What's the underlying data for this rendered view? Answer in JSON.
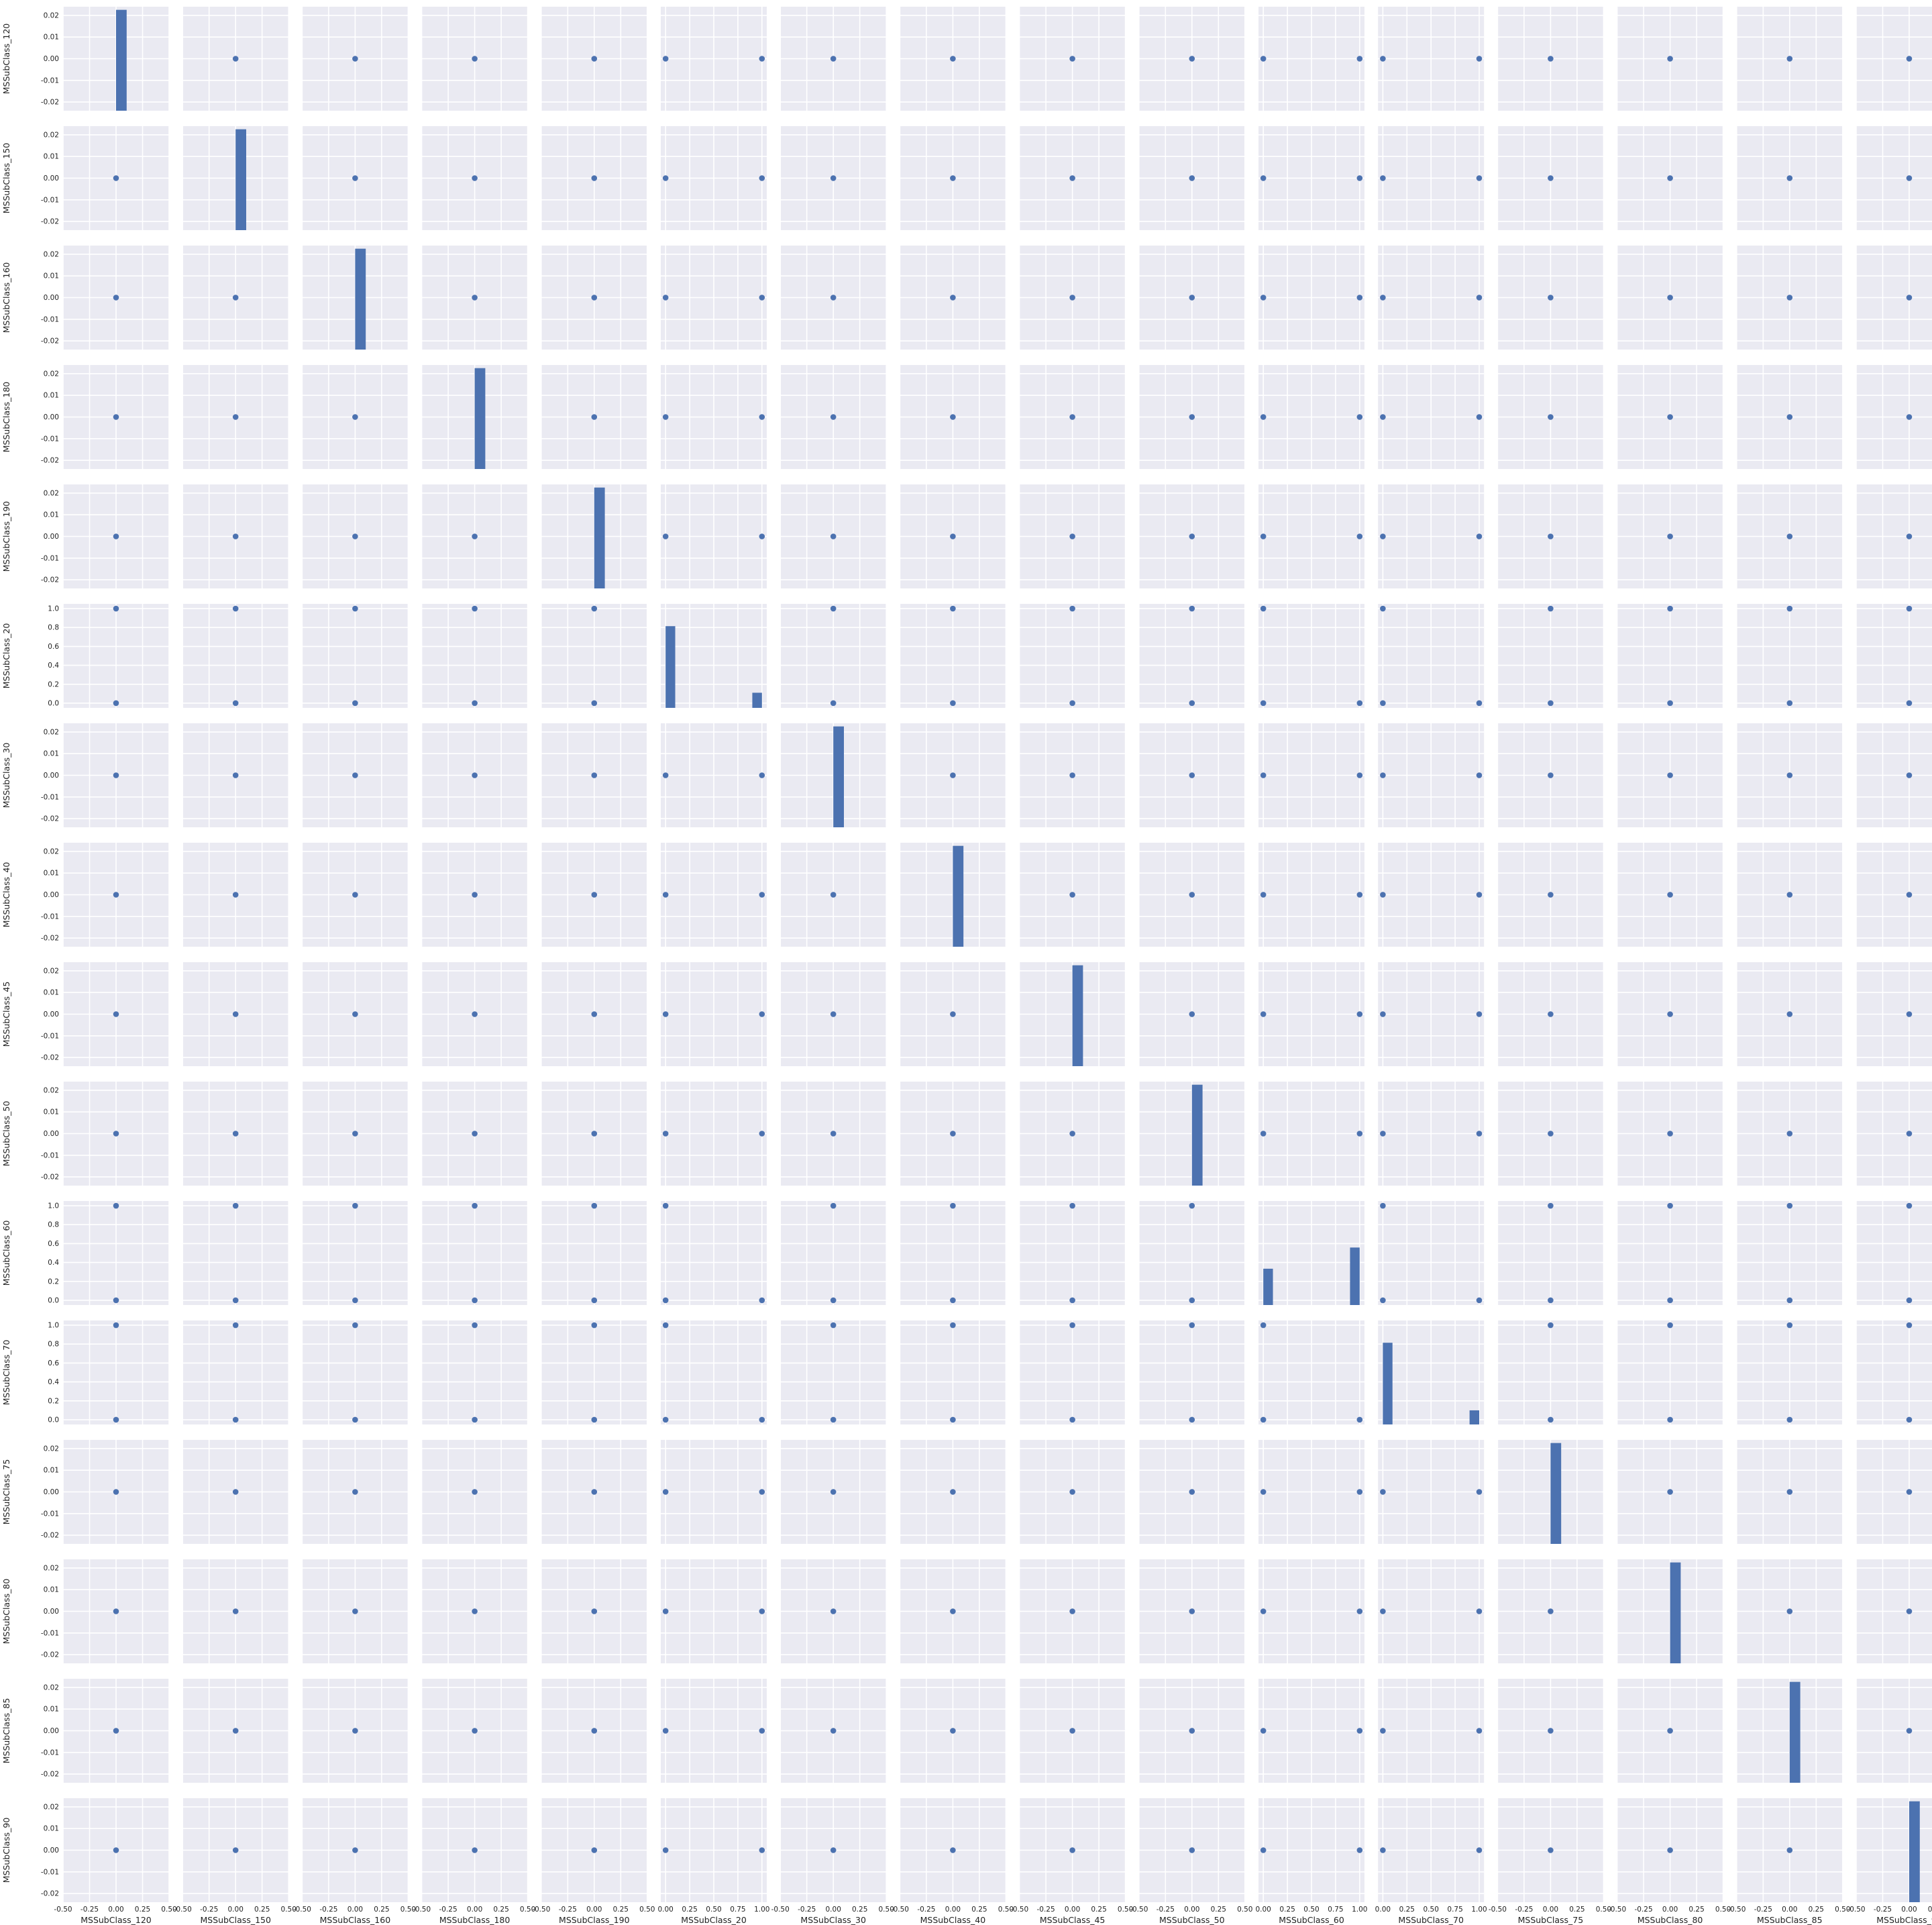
{
  "colors": {
    "panel_background": "#EAEAF2",
    "grid": "#FFFFFF",
    "marker": "#4C72B0",
    "bar": "#4C72B0",
    "text": "#222222"
  },
  "chart_data": {
    "type": "pairplot",
    "variables": [
      "MSSubClass_120",
      "MSSubClass_150",
      "MSSubClass_160",
      "MSSubClass_180",
      "MSSubClass_190",
      "MSSubClass_20",
      "MSSubClass_30",
      "MSSubClass_40",
      "MSSubClass_45",
      "MSSubClass_50",
      "MSSubClass_60",
      "MSSubClass_70",
      "MSSubClass_75",
      "MSSubClass_80",
      "MSSubClass_85",
      "MSSubClass_90"
    ],
    "binary_variables": [
      "MSSubClass_20",
      "MSSubClass_60",
      "MSSubClass_70"
    ],
    "off_diagonal": "scatter",
    "diagonal": "histogram",
    "constant_axis": {
      "range": [
        -0.5,
        0.5
      ],
      "ticks": [
        -0.5,
        -0.25,
        0.0,
        0.25,
        0.5
      ],
      "tick_labels": [
        "-0.50",
        "-0.25",
        "0.00",
        "0.25",
        "0.50"
      ]
    },
    "binary_axis": {
      "range": [
        -0.05,
        1.05
      ],
      "ticks": [
        0.0,
        0.25,
        0.5,
        0.75,
        1.0
      ],
      "tick_labels": [
        "0.00",
        "0.25",
        "0.50",
        "0.75",
        "1.00"
      ]
    },
    "constant_y_axis": {
      "range": [
        -0.024,
        0.024
      ],
      "ticks": [
        -0.02,
        -0.01,
        0.0,
        0.01,
        0.02
      ],
      "tick_labels": [
        "-0.02",
        "-0.01",
        "0.00",
        "0.01",
        "0.02"
      ]
    },
    "binary_y_axis": {
      "range": [
        -0.05,
        1.05
      ],
      "ticks": [
        0.0,
        0.2,
        0.4,
        0.6,
        0.8,
        1.0
      ],
      "tick_labels": [
        "0.0",
        "0.2",
        "0.4",
        "0.6",
        "0.8",
        "1.0"
      ]
    },
    "histograms": {
      "constant": {
        "bins": [
          {
            "x0": 0.0,
            "x1": 0.1,
            "height": 1.0
          }
        ]
      },
      "MSSubClass_20": {
        "bins": [
          {
            "x0": 0.0,
            "x1": 0.1,
            "height": 0.81
          },
          {
            "x0": 0.9,
            "x1": 1.0,
            "height": 0.15
          }
        ]
      },
      "MSSubClass_60": {
        "bins": [
          {
            "x0": 0.0,
            "x1": 0.1,
            "height": 0.36
          },
          {
            "x0": 0.9,
            "x1": 1.0,
            "height": 0.57
          }
        ]
      },
      "MSSubClass_70": {
        "bins": [
          {
            "x0": 0.0,
            "x1": 0.1,
            "height": 0.81
          },
          {
            "x0": 0.9,
            "x1": 1.0,
            "height": 0.14
          }
        ]
      }
    }
  }
}
